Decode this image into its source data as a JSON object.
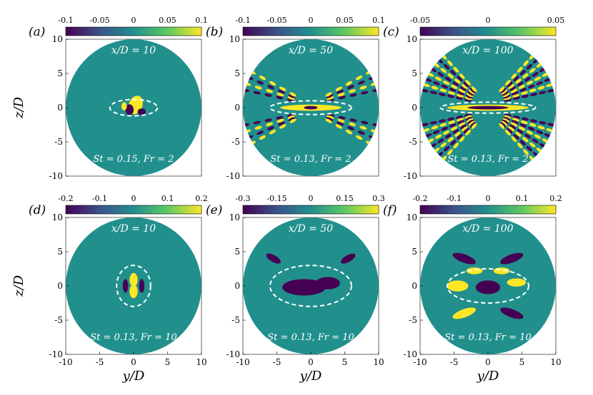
{
  "figure": {
    "panels": [
      {
        "label": "(a)",
        "title": "x/D = 10",
        "param": "St = 0.15, Fr = 2",
        "colorbar": {
          "ticks": [
            "-0.1",
            "-0.05",
            "0",
            "0.05",
            "0.1"
          ],
          "range": [
            -0.1,
            0.1
          ]
        },
        "ellipse": {
          "a": 3.5,
          "b": 1.2
        },
        "pattern": "core-a"
      },
      {
        "label": "(b)",
        "title": "x/D = 50",
        "param": "St = 0.13, Fr = 2",
        "colorbar": {
          "ticks": [
            "-0.1",
            "-0.05",
            "0",
            "0.05",
            "0.1"
          ],
          "range": [
            -0.1,
            0.1
          ]
        },
        "ellipse": {
          "a": 6.0,
          "b": 1.0
        },
        "pattern": "rays-b"
      },
      {
        "label": "(c)",
        "title": "x/D = 100",
        "param": "St = 0.13, Fr = 2",
        "colorbar": {
          "ticks": [
            "-0.05",
            "0",
            "0.05"
          ],
          "range": [
            -0.05,
            0.05
          ]
        },
        "ellipse": {
          "a": 7.0,
          "b": 0.8
        },
        "pattern": "rays-c"
      },
      {
        "label": "(d)",
        "title": "x/D = 10",
        "param": "St = 0.13, Fr = 10",
        "colorbar": {
          "ticks": [
            "-0.2",
            "-0.1",
            "0",
            "0.1",
            "0.2"
          ],
          "range": [
            -0.2,
            0.2
          ]
        },
        "ellipse": {
          "a": 2.5,
          "b": 3.0
        },
        "pattern": "core-d"
      },
      {
        "label": "(e)",
        "title": "x/D = 50",
        "param": "St = 0.13, Fr = 10",
        "colorbar": {
          "ticks": [
            "-0.3",
            "-0.15",
            "0",
            "0.15",
            "0.3"
          ],
          "range": [
            -0.3,
            0.3
          ]
        },
        "ellipse": {
          "a": 6.0,
          "b": 3.0
        },
        "pattern": "core-e"
      },
      {
        "label": "(f)",
        "title": "x/D = 100",
        "param": "St = 0.13, Fr = 10",
        "colorbar": {
          "ticks": [
            "-0.2",
            "-0.1",
            "0",
            "0.1",
            "0.2"
          ],
          "range": [
            -0.2,
            0.2
          ]
        },
        "ellipse": {
          "a": 6.0,
          "b": 2.5
        },
        "pattern": "core-f"
      }
    ],
    "x_axis": {
      "label": "y/D",
      "ticks": [
        "-10",
        "-5",
        "0",
        "5",
        "10"
      ]
    },
    "y_axis": {
      "label": "z/D",
      "ticks": [
        "10",
        "5",
        "0",
        "-5",
        "-10"
      ]
    },
    "colors": {
      "fill": "#21908d",
      "neg": "#440154",
      "pos": "#fde725",
      "dash": "#ffffff",
      "viridis": [
        "#440154",
        "#3b528b",
        "#21908d",
        "#5ec962",
        "#fde725"
      ]
    }
  }
}
